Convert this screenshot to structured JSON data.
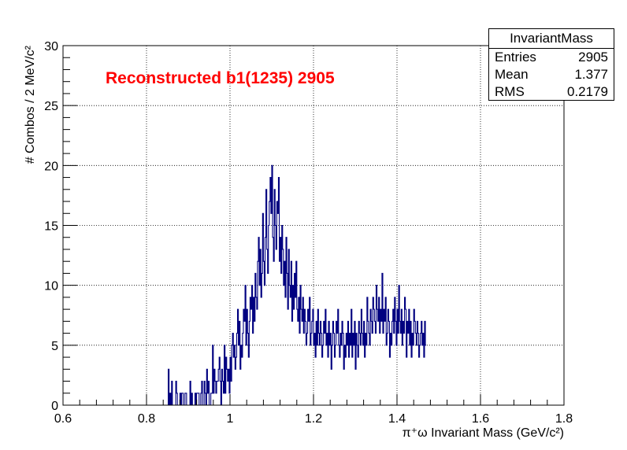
{
  "chart_data": {
    "type": "histogram",
    "title": "Reconstructed b1(1235) 2905",
    "xlabel": "π⁺ω Invariant Mass (GeV/c²)",
    "ylabel": "# Combos / 2 MeV/c²",
    "xlim": [
      0.6,
      1.8
    ],
    "ylim": [
      0,
      30
    ],
    "x_ticks": [
      "0.6",
      "0.8",
      "1",
      "1.2",
      "1.4",
      "1.6",
      "1.8"
    ],
    "y_ticks": [
      "0",
      "5",
      "10",
      "15",
      "20",
      "25",
      "30"
    ],
    "grid": true,
    "line_color": "#000080",
    "bin_width": 0.002,
    "bin_start": 0.6,
    "counts": [
      0,
      0,
      0,
      0,
      0,
      0,
      0,
      0,
      0,
      0,
      0,
      0,
      0,
      0,
      0,
      0,
      0,
      0,
      0,
      0,
      0,
      0,
      0,
      0,
      0,
      0,
      0,
      0,
      0,
      0,
      0,
      0,
      0,
      0,
      0,
      0,
      0,
      0,
      0,
      0,
      0,
      0,
      0,
      0,
      0,
      0,
      0,
      0,
      0,
      0,
      0,
      0,
      0,
      0,
      0,
      0,
      0,
      0,
      0,
      0,
      0,
      0,
      0,
      0,
      0,
      0,
      0,
      0,
      0,
      0,
      0,
      0,
      0,
      0,
      0,
      0,
      0,
      0,
      0,
      0,
      0,
      0,
      0,
      0,
      0,
      0,
      0,
      0,
      0,
      0,
      0,
      0,
      0,
      0,
      0,
      0,
      0,
      0,
      0,
      0,
      0,
      0,
      0,
      0,
      0,
      0,
      0,
      0,
      0,
      0,
      0,
      0,
      0,
      0,
      0,
      0,
      0,
      0,
      0,
      0,
      0,
      0,
      0,
      0,
      0,
      0,
      3,
      0,
      1,
      0,
      2,
      0,
      0,
      0,
      0,
      2,
      1,
      0,
      0,
      0,
      1,
      0,
      1,
      1,
      0,
      0,
      1,
      1,
      0,
      0,
      0,
      0,
      2,
      0,
      1,
      0,
      0,
      0,
      1,
      0,
      1,
      1,
      1,
      0,
      0,
      1,
      2,
      0,
      0,
      2,
      1,
      0,
      3,
      1,
      2,
      0,
      0,
      1,
      1,
      5,
      1,
      3,
      2,
      1,
      2,
      2,
      3,
      4,
      2,
      0,
      3,
      2,
      1,
      5,
      1,
      4,
      3,
      2,
      3,
      1,
      4,
      2,
      5,
      6,
      4,
      5,
      3,
      4,
      6,
      8,
      5,
      7,
      3,
      5,
      4,
      6,
      8,
      7,
      10,
      5,
      8,
      6,
      4,
      7,
      9,
      8,
      10,
      6,
      9,
      7,
      11,
      9,
      8,
      12,
      14,
      10,
      13,
      9,
      11,
      16,
      12,
      10,
      14,
      18,
      13,
      11,
      15,
      17,
      19,
      16,
      20,
      14,
      12,
      18,
      15,
      13,
      17,
      16,
      19,
      12,
      14,
      11,
      15,
      13,
      10,
      12,
      9,
      14,
      11,
      8,
      13,
      10,
      9,
      12,
      7,
      10,
      8,
      11,
      9,
      12,
      8,
      7,
      9,
      6,
      10,
      8,
      7,
      9,
      6,
      8,
      7,
      5,
      6,
      8,
      7,
      9,
      5,
      6,
      7,
      8,
      5,
      6,
      4,
      7,
      5,
      8,
      6,
      5,
      7,
      6,
      4,
      5,
      7,
      6,
      8,
      5,
      6,
      4,
      7,
      5,
      6,
      3,
      5,
      7,
      6,
      4,
      5,
      7,
      6,
      8,
      5,
      4,
      6,
      5,
      7,
      6,
      3,
      5,
      4,
      6,
      5,
      7,
      4,
      6,
      5,
      8,
      4,
      6,
      5,
      7,
      3,
      6,
      5,
      4,
      7,
      6,
      5,
      8,
      6,
      5,
      7,
      4,
      6,
      5,
      9,
      7,
      6,
      5,
      8,
      7,
      6,
      9,
      8,
      7,
      6,
      10,
      8,
      7,
      9,
      6,
      8,
      7,
      11,
      6,
      8,
      7,
      9,
      5,
      6,
      8,
      7,
      4,
      6,
      5,
      7,
      8,
      6,
      9,
      7,
      5,
      8,
      6,
      10,
      7,
      6,
      8,
      5,
      7,
      6,
      9,
      8,
      4,
      7,
      6,
      8,
      5,
      7,
      4,
      6,
      5,
      8,
      7,
      6,
      5,
      7,
      6,
      4,
      5,
      6,
      7,
      5,
      6,
      4,
      7,
      5
    ]
  },
  "stats_box": {
    "name": "InvariantMass",
    "entries_label": "Entries",
    "entries_value": "2905",
    "mean_label": "Mean",
    "mean_value": "1.377",
    "rms_label": "RMS",
    "rms_value": "0.2179"
  }
}
